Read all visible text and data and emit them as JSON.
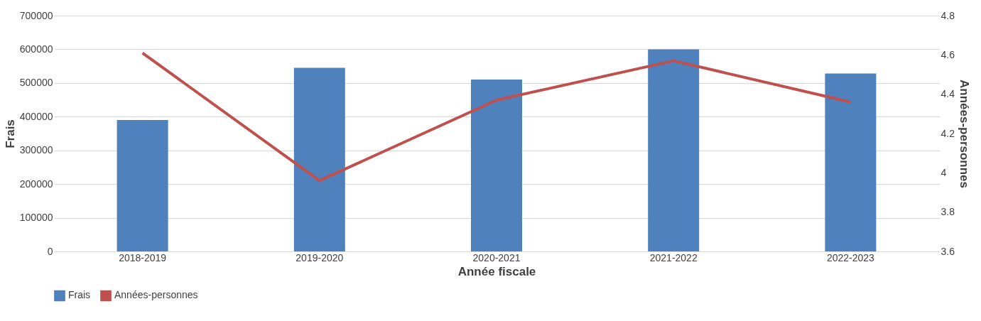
{
  "chart_data": {
    "type": "bar",
    "xlabel": "Année fiscale",
    "ylabel": "Frais",
    "y2label": "Années-personnes",
    "categories": [
      "2018-2019",
      "2019-2020",
      "2020-2021",
      "2021-2022",
      "2022-2023"
    ],
    "series": [
      {
        "name": "Frais",
        "color": "#4f81bd",
        "values": [
          390000,
          545000,
          510000,
          600000,
          528000
        ]
      },
      {
        "name": "Années-personnes",
        "type": "line",
        "axis": "y2",
        "color": "#c0504d",
        "values": [
          4.61,
          3.96,
          4.37,
          4.57,
          4.36
        ]
      }
    ],
    "ylim": [
      0,
      700000
    ],
    "yticks": [
      0,
      100000,
      200000,
      300000,
      400000,
      500000,
      600000,
      700000
    ],
    "y2lim": [
      3.6,
      4.8
    ],
    "y2ticks": [
      3.6,
      3.8,
      4,
      4.2,
      4.4,
      4.6,
      4.8
    ],
    "grid": "y",
    "legend": "bottom",
    "marker": "none",
    "line_style": "solid"
  }
}
